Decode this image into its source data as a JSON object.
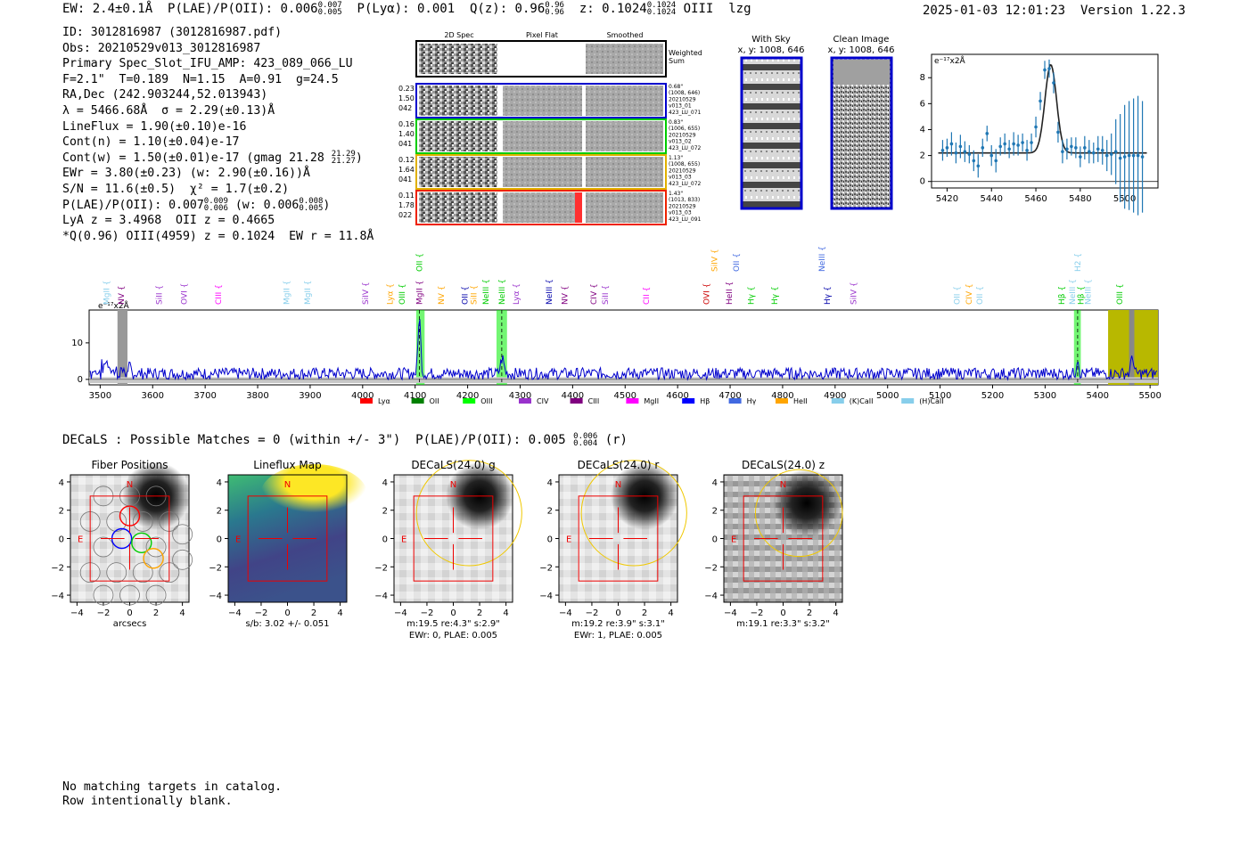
{
  "header": {
    "ew_label": "EW: 2.4±0.1Å",
    "plae_label": "P(LAE)/P(OII): 0.006",
    "plae_sup": "0.007",
    "plae_sub": "0.005",
    "plya_label": "P(Lyα): 0.001",
    "q_label": "Q(z): 0.96",
    "q_sup": "0.96",
    "q_sub": "0.96",
    "z_label": "z: 0.1024",
    "z_sup": "0.1024",
    "z_sub": "0.1024",
    "line": "OIII",
    "flag": "lzg",
    "timestamp": "2025-01-03 12:01:23",
    "version": "Version 1.22.3"
  },
  "info": {
    "id": "ID: 3012816987 (3012816987.pdf)",
    "obs": "Obs: 20210529v013_3012816987",
    "slot": "Primary Spec_Slot_IFU_AMP: 423_089_066_LU",
    "params": "F=2.1\"  T=0.189  N=1.15  A=0.91  g=24.5",
    "radec": "RA,Dec (242.903244,52.013943)",
    "lambda": "λ = 5466.68Å  σ = 2.29(±0.13)Å",
    "lineflux": "LineFlux = 1.90(±0.10)e-16",
    "contn": "Cont(n) = 1.10(±0.04)e-17",
    "contw": "Cont(w) = 1.50(±0.01)e-17 (gmag 21.28",
    "contw_sup": "21.29",
    "contw_sub": "21.27",
    "ewr": "EWr = 3.80(±0.23) (w: 2.90(±0.16))Å",
    "sn": "S/N = 11.6(±0.5)  χ² = 1.7(±0.2)",
    "plae": "P(LAE)/P(OII): 0.007",
    "plae_sup": "0.009",
    "plae_sub": "0.006",
    "plae_w": "(w: 0.006",
    "plae_w_sup": "0.008",
    "plae_w_sub": "0.005",
    "lya": "LyA z = 3.4968  OII z = 0.4665",
    "q": "*Q(0.96) OIII(4959) z = 0.1024  EW r = 11.8Å"
  },
  "cutouts": {
    "col_labels": [
      "2D Spec",
      "Pixel Flat",
      "Smoothed"
    ],
    "weighted_sum": [
      "Weighted",
      "Sum"
    ],
    "rows": [
      {
        "left": [
          "0.23",
          "1.50",
          "042"
        ],
        "right": [
          "0.68\"",
          "(1008, 646)",
          "20210529",
          "v013_01",
          "423_LU_071"
        ],
        "color": "#0000cc"
      },
      {
        "left": [
          "0.16",
          "1.40",
          "041"
        ],
        "right": [
          "0.83\"",
          "(1006, 655)",
          "20210529",
          "v013_02",
          "423_LU_072"
        ],
        "color": "#00cc00"
      },
      {
        "left": [
          "0.12",
          "1.64",
          "041"
        ],
        "right": [
          "1.13\"",
          "(1008, 655)",
          "20210529",
          "v013_03",
          "423_LU_072"
        ],
        "color": "#e0b000"
      },
      {
        "left": [
          "0.11",
          "1.78",
          "022"
        ],
        "right": [
          "1.43\"",
          "(1013, 833)",
          "20210529",
          "v013_03",
          "423_LU_091"
        ],
        "color": "#ee2200"
      }
    ],
    "with_sky": [
      "With Sky",
      "x, y: 1008, 646"
    ],
    "clean_image": [
      "Clean Image",
      "x, y: 1008, 646"
    ]
  },
  "line_fit": {
    "unit": "e⁻¹⁷x2Å",
    "x_ticks": [
      "5420",
      "5440",
      "5460",
      "5480",
      "5500"
    ],
    "y_ticks": [
      "0",
      "2",
      "4",
      "6",
      "8"
    ]
  },
  "spectrum": {
    "unit": "e⁻¹⁷x2Å",
    "x_ticks": [
      "3500",
      "3600",
      "3700",
      "3800",
      "3900",
      "4000",
      "4100",
      "4200",
      "4300",
      "4400",
      "4500",
      "4600",
      "4700",
      "4800",
      "4900",
      "5000",
      "5100",
      "5200",
      "5300",
      "5400",
      "5500"
    ],
    "y_ticks": [
      "0",
      "10"
    ],
    "legend": [
      {
        "label": "Lyα",
        "color": "#ff0000"
      },
      {
        "label": "OII",
        "color": "#008000"
      },
      {
        "label": "OIII",
        "color": "#00ff00"
      },
      {
        "label": "CIV",
        "color": "#9932cc"
      },
      {
        "label": "CIII",
        "color": "#800080"
      },
      {
        "label": "MgII",
        "color": "#ff00ff"
      },
      {
        "label": "Hβ",
        "color": "#0000ff"
      },
      {
        "label": "Hγ",
        "color": "#4169e1"
      },
      {
        "label": "HeII",
        "color": "#ffa500"
      },
      {
        "label": "(K)CaII",
        "color": "#87ceeb"
      },
      {
        "label": "(H)CaII",
        "color": "#87ceeb"
      }
    ],
    "lines": [
      {
        "label": "MgII",
        "color": "#87ceeb",
        "w": 3512,
        "row": 0
      },
      {
        "label": "NV",
        "color": "#800080",
        "w": 3540,
        "row": 0
      },
      {
        "label": "SiII",
        "color": "#9932cc",
        "w": 3612,
        "row": 0
      },
      {
        "label": "OVI",
        "color": "#9932cc",
        "w": 3660,
        "row": 0
      },
      {
        "label": "CIII",
        "color": "#ff00ff",
        "w": 3725,
        "row": 0
      },
      {
        "label": "MgII",
        "color": "#87ceeb",
        "w": 3855,
        "row": 0
      },
      {
        "label": "MgII",
        "color": "#87ceeb",
        "w": 3895,
        "row": 0
      },
      {
        "label": "SiIV",
        "color": "#9932cc",
        "w": 4005,
        "row": 0
      },
      {
        "label": "Lyα",
        "color": "#ffa500",
        "w": 4052,
        "row": 0
      },
      {
        "label": "OIII",
        "color": "#00cc00",
        "w": 4075,
        "row": 0
      },
      {
        "label": "MgII",
        "color": "#800080",
        "w": 4108,
        "row": 0
      },
      {
        "label": "NV",
        "color": "#ffa500",
        "w": 4150,
        "row": 0
      },
      {
        "label": "OII",
        "color": "#0000aa",
        "w": 4195,
        "row": 0
      },
      {
        "label": "SiII",
        "color": "#ffa500",
        "w": 4212,
        "row": 0
      },
      {
        "label": "NeIII",
        "color": "#00cc00",
        "w": 4235,
        "row": 0
      },
      {
        "label": "NeIII",
        "color": "#00cc00",
        "w": 4265,
        "row": 0
      },
      {
        "label": "Lyα",
        "color": "#9932cc",
        "w": 4292,
        "row": 0
      },
      {
        "label": "NeIII",
        "color": "#0000aa",
        "w": 4355,
        "row": 0
      },
      {
        "label": "NV",
        "color": "#800080",
        "w": 4385,
        "row": 0
      },
      {
        "label": "CIV",
        "color": "#800080",
        "w": 4440,
        "row": 0
      },
      {
        "label": "SiII",
        "color": "#9932cc",
        "w": 4462,
        "row": 0
      },
      {
        "label": "CII",
        "color": "#ff00ff",
        "w": 4540,
        "row": 0
      },
      {
        "label": "OVI",
        "color": "#cc0000",
        "w": 4655,
        "row": 0
      },
      {
        "label": "HeII",
        "color": "#800080",
        "w": 4698,
        "row": 0
      },
      {
        "label": "Hγ",
        "color": "#00cc00",
        "w": 4740,
        "row": 0
      },
      {
        "label": "Hγ",
        "color": "#00cc00",
        "w": 4785,
        "row": 0
      },
      {
        "label": "Hγ",
        "color": "#0000aa",
        "w": 4885,
        "row": 0
      },
      {
        "label": "SiIV",
        "color": "#9932cc",
        "w": 4935,
        "row": 0
      },
      {
        "label": "OII",
        "color": "#87ceeb",
        "w": 5132,
        "row": 0
      },
      {
        "label": "CIV",
        "color": "#ffa500",
        "w": 5155,
        "row": 0
      },
      {
        "label": "OII",
        "color": "#87ceeb",
        "w": 5175,
        "row": 0
      },
      {
        "label": "Hβ",
        "color": "#00cc00",
        "w": 5332,
        "row": 0
      },
      {
        "label": "NeIII",
        "color": "#87ceeb",
        "w": 5352,
        "row": 0
      },
      {
        "label": "Hβ",
        "color": "#00cc00",
        "w": 5368,
        "row": 0
      },
      {
        "label": "NeIII",
        "color": "#87ceeb",
        "w": 5382,
        "row": 0
      },
      {
        "label": "OIII",
        "color": "#00cc00",
        "w": 5442,
        "row": 0
      },
      {
        "label": "OII",
        "color": "#00cc00",
        "w": 4108,
        "row": 1
      },
      {
        "label": "SiIV",
        "color": "#ffa500",
        "w": 4670,
        "row": 1
      },
      {
        "label": "OII",
        "color": "#4169e1",
        "w": 4712,
        "row": 1
      },
      {
        "label": "NeIII",
        "color": "#4169e1",
        "w": 4875,
        "row": 1
      },
      {
        "label": "H2",
        "color": "#87ceeb",
        "w": 5362,
        "row": 1
      }
    ]
  },
  "decals": {
    "title": "DECaLS : Possible Matches = 0 (within +/- 3\")  P(LAE)/P(OII): 0.005",
    "title_sup": "0.006",
    "title_sub": "0.004",
    "title_suffix": "(r)",
    "ticks": [
      "−4",
      "−2",
      "0",
      "2",
      "4"
    ],
    "north": "N",
    "east": "E",
    "panels": [
      {
        "title": "Fiber Positions",
        "caption1": "arcsecs",
        "caption2": ""
      },
      {
        "title": "Lineflux Map",
        "caption1": "s/b: 3.02 +/- 0.051",
        "caption2": ""
      },
      {
        "title": "DECaLS(24.0) g",
        "caption1": "m:19.5  re:4.3\"  s:2.9\"",
        "caption2": "EWr: 0, PLAE: 0.005"
      },
      {
        "title": "DECaLS(24.0) r",
        "caption1": "m:19.2  re:3.9\"  s:3.1\"",
        "caption2": "EWr: 1, PLAE: 0.005"
      },
      {
        "title": "DECaLS(24.0) z",
        "caption1": "m:19.1  re:3.3\"  s:3.2\"",
        "caption2": ""
      }
    ]
  },
  "footer": {
    "line1": "No matching targets in catalog.",
    "line2": "Row intentionally blank."
  }
}
